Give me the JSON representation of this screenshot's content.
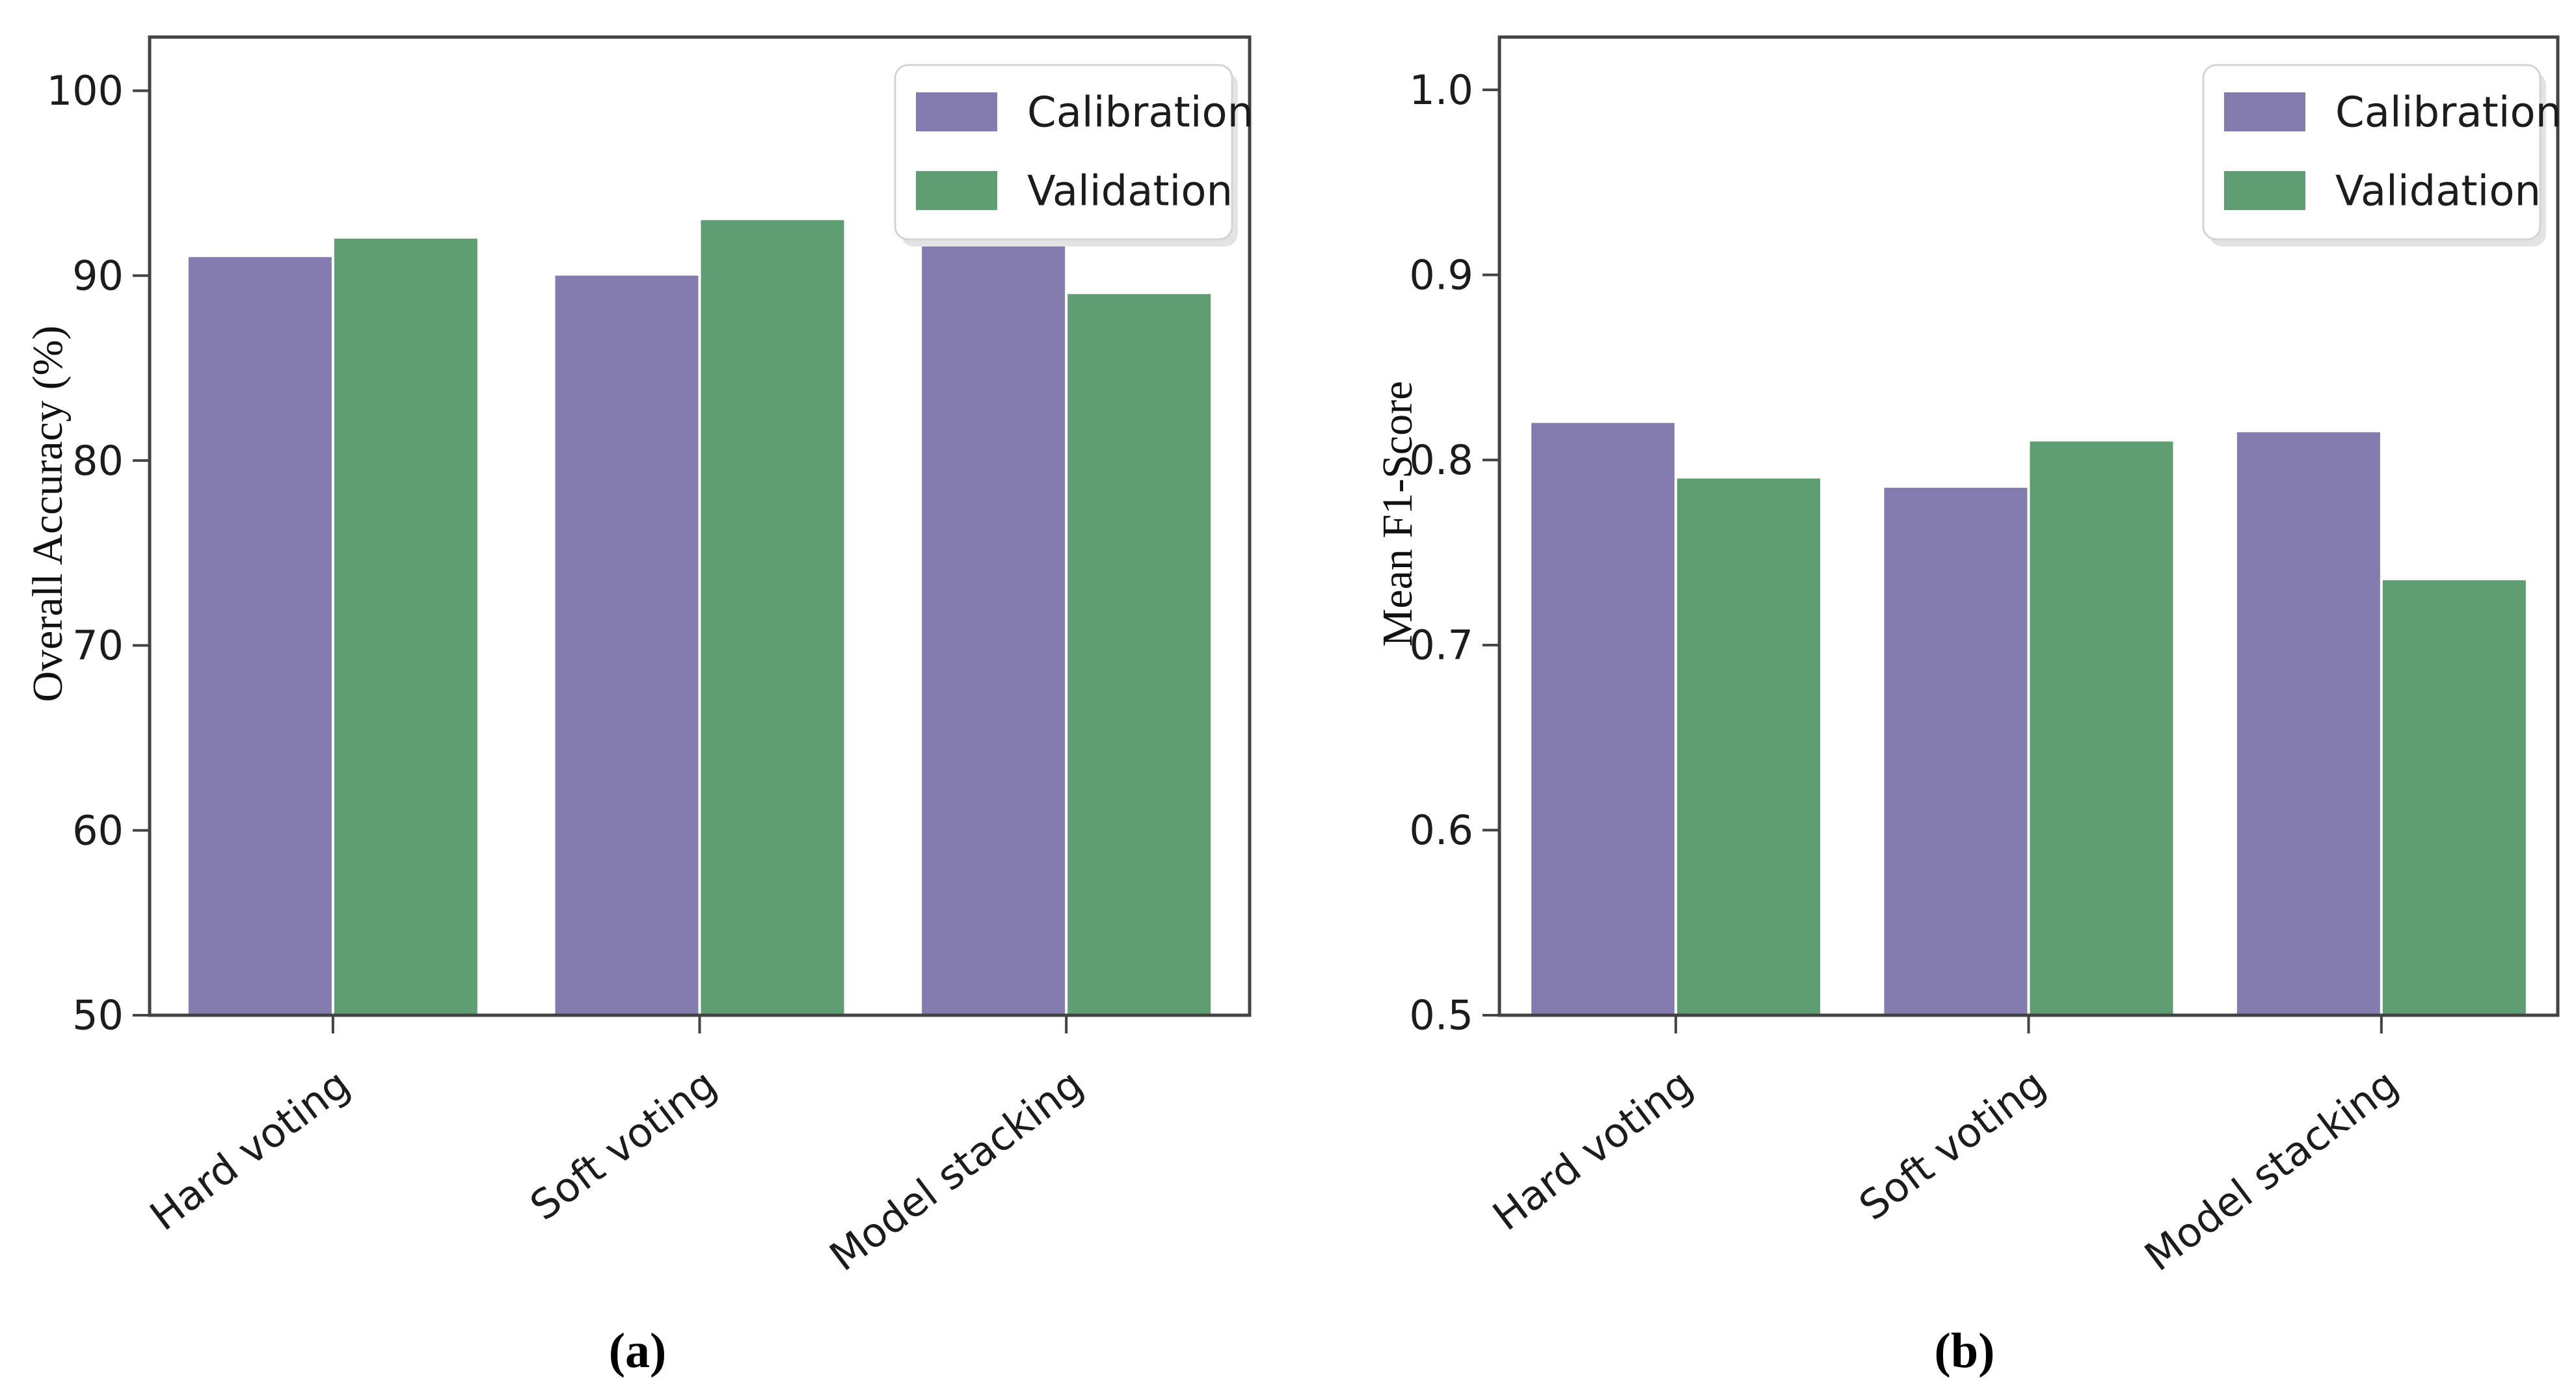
{
  "figure": {
    "background": "#ffffff"
  },
  "palette": {
    "calibration": "#847bae",
    "validation": "#5f9e72",
    "spine": "#434343",
    "tick": "#434343",
    "text": "#1c1c1c",
    "legend_bg": "#ffffff",
    "legend_border": "#d4d4d4",
    "legend_shadow": "#e3e3e3"
  },
  "legend": {
    "items": [
      {
        "label": "Calibration",
        "color_key": "calibration"
      },
      {
        "label": "Validation",
        "color_key": "validation"
      }
    ]
  },
  "chart_data": [
    {
      "id": "a",
      "type": "bar",
      "title": "",
      "caption": "(a)",
      "xlabel": "",
      "ylabel": "Overall Accuracy (%)",
      "categories": [
        "Hard voting",
        "Soft voting",
        "Model stacking"
      ],
      "series": [
        {
          "name": "Calibration",
          "values": [
            91,
            90,
            92
          ]
        },
        {
          "name": "Validation",
          "values": [
            92,
            93,
            89
          ]
        }
      ],
      "ylim": [
        50,
        102.9
      ],
      "yticks": [
        50,
        60,
        70,
        80,
        90,
        100
      ],
      "ytick_decimals": 0,
      "grid": false,
      "legend_position": "upper-right"
    },
    {
      "id": "b",
      "type": "bar",
      "title": "",
      "caption": "(b)",
      "xlabel": "",
      "ylabel": "Mean F1-Score",
      "categories": [
        "Hard voting",
        "Soft voting",
        "Model stacking"
      ],
      "series": [
        {
          "name": "Calibration",
          "values": [
            0.82,
            0.785,
            0.815
          ]
        },
        {
          "name": "Validation",
          "values": [
            0.79,
            0.81,
            0.735
          ]
        }
      ],
      "ylim": [
        0.5,
        1.0285
      ],
      "yticks": [
        0.5,
        0.6,
        0.7,
        0.8,
        0.9,
        1.0
      ],
      "ytick_decimals": 1,
      "grid": false,
      "legend_position": "upper-right"
    }
  ]
}
